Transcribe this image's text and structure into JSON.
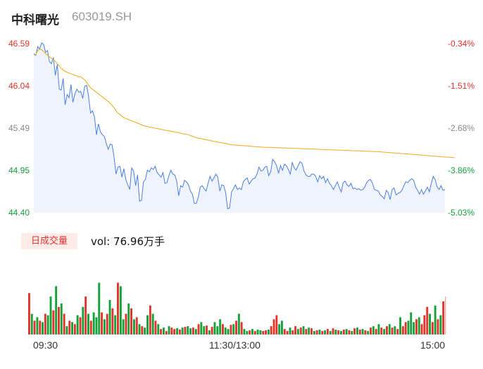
{
  "header": {
    "name": "中科曙光",
    "code": "603019.SH"
  },
  "period_label": "日成交量",
  "volume_text": "vol: 76.96万手",
  "colors": {
    "price_line": "#4a7fe0",
    "avg_line": "#f3a81c",
    "up": "#e0342c",
    "down": "#15a03a",
    "neutral": "#808080",
    "area": "#eef3fc"
  },
  "chart_data": [
    {
      "type": "line",
      "y_axis_left": [
        "46.59",
        "46.04",
        "45.49",
        "44.95",
        "44.40"
      ],
      "y_axis_right": [
        "-0.34%",
        "-1.51%",
        "-2.68%",
        "-3.86%",
        "-5.03%"
      ],
      "ylim": [
        44.4,
        46.59
      ],
      "x_ticks": [
        "09:30",
        "11:30/13:00",
        "15:00"
      ],
      "series": [
        {
          "points": [
            46.46,
            46.44,
            46.55,
            46.52,
            46.6,
            46.58,
            46.48,
            46.5,
            46.36,
            46.33,
            46.41,
            46.18,
            46.32,
            46.0,
            45.99,
            46.14,
            45.8,
            45.93,
            45.89,
            46.06,
            45.83,
            45.94,
            46.0,
            45.96,
            45.97,
            45.88,
            46.04,
            46.05,
            45.9,
            45.69,
            45.72,
            45.64,
            45.41,
            45.55,
            45.45,
            45.41,
            45.39,
            45.3,
            45.22,
            45.29,
            45.28,
            45.12,
            44.9,
            44.99,
            45.0,
            44.86,
            44.97,
            44.83,
            44.76,
            44.7,
            44.98,
            44.94,
            44.75,
            44.89,
            44.55,
            44.56,
            44.8,
            44.83,
            44.95,
            44.93,
            44.98,
            44.96,
            45.0,
            44.92,
            44.89,
            44.86,
            44.92,
            44.78,
            44.79,
            44.88,
            44.95,
            44.9,
            44.89,
            44.81,
            44.62,
            44.75,
            44.73,
            44.82,
            44.8,
            44.76,
            44.68,
            44.64,
            44.52,
            44.52,
            44.6,
            44.73,
            44.75,
            44.71,
            44.68,
            44.78,
            44.87,
            44.81,
            44.85,
            44.9,
            44.86,
            44.68,
            44.76,
            44.75,
            44.66,
            44.45,
            44.46,
            44.67,
            44.71,
            44.76,
            44.7,
            44.72,
            44.7,
            44.8,
            44.83,
            44.85,
            44.77,
            44.81,
            44.84,
            44.85,
            44.9,
            44.99,
            44.94,
            44.95,
            44.99,
            45.0,
            44.88,
            44.93,
            45.09,
            45.06,
            45.01,
            44.91,
            45.01,
            44.95,
            45.03,
            45.01,
            44.96,
            44.9,
            45.05,
            44.98,
            44.95,
            45.01,
            45.06,
            45.04,
            44.94,
            44.89,
            44.87,
            44.87,
            44.9,
            44.9,
            44.87,
            44.8,
            44.88,
            44.84,
            44.87,
            44.79,
            44.84,
            44.78,
            44.75,
            44.7,
            44.75,
            44.8,
            44.73,
            44.67,
            44.79,
            44.81,
            44.76,
            44.74,
            44.78,
            44.71,
            44.72,
            44.7,
            44.71,
            44.69,
            44.7,
            44.73,
            44.79,
            44.82,
            44.83,
            44.78,
            44.7,
            44.69,
            44.68,
            44.63,
            44.61,
            44.58,
            44.69,
            44.66,
            44.57,
            44.7,
            44.72,
            44.63,
            44.65,
            44.66,
            44.69,
            44.75,
            44.8,
            44.79,
            44.82,
            44.84,
            44.82,
            44.73,
            44.69,
            44.64,
            44.7,
            44.64,
            44.68,
            44.73,
            44.67,
            44.78,
            44.87,
            44.83,
            44.73,
            44.7,
            44.75,
            44.69,
            44.7
          ]
        },
        {
          "points": [
            46.44,
            46.45,
            46.5,
            46.52,
            46.51,
            46.49,
            46.46,
            46.44,
            46.42,
            46.4,
            46.38,
            46.36,
            46.33,
            46.3,
            46.27,
            46.25,
            46.23,
            46.22,
            46.21,
            46.2,
            46.19,
            46.18,
            46.17,
            46.16,
            46.16,
            46.14,
            46.12,
            46.09,
            46.05,
            46.02,
            46.0,
            45.98,
            45.96,
            45.94,
            45.92,
            45.9,
            45.88,
            45.86,
            45.84,
            45.82,
            45.79,
            45.76,
            45.72,
            45.69,
            45.67,
            45.65,
            45.63,
            45.62,
            45.61,
            45.6,
            45.59,
            45.58,
            45.57,
            45.56,
            45.55,
            45.54,
            45.53,
            45.52,
            45.515,
            45.51,
            45.505,
            45.5,
            45.495,
            45.49,
            45.485,
            45.48,
            45.475,
            45.47,
            45.465,
            45.46,
            45.455,
            45.45,
            45.445,
            45.44,
            45.435,
            45.43,
            45.425,
            45.42,
            45.415,
            45.41,
            45.4,
            45.39,
            45.38,
            45.37,
            45.365,
            45.36,
            45.355,
            45.35,
            45.345,
            45.34,
            45.335,
            45.33,
            45.325,
            45.32,
            45.315,
            45.31,
            45.305,
            45.3,
            45.295,
            45.29,
            45.285,
            45.28,
            45.278,
            45.276,
            45.274,
            45.272,
            45.27,
            45.268,
            45.266,
            45.264,
            45.262,
            45.26,
            45.258,
            45.256,
            45.254,
            45.252,
            45.25,
            45.249,
            45.248,
            45.247,
            45.246,
            45.245,
            45.244,
            45.243,
            45.242,
            45.241,
            45.24,
            45.239,
            45.238,
            45.237,
            45.236,
            45.235,
            45.234,
            45.233,
            45.232,
            45.231,
            45.23,
            45.229,
            45.228,
            45.227,
            45.226,
            45.225,
            45.224,
            45.223,
            45.222,
            45.221,
            45.22,
            45.219,
            45.218,
            45.217,
            45.216,
            45.215,
            45.214,
            45.213,
            45.212,
            45.211,
            45.21,
            45.209,
            45.208,
            45.207,
            45.206,
            45.205,
            45.204,
            45.203,
            45.202,
            45.201,
            45.2,
            45.199,
            45.198,
            45.197,
            45.196,
            45.195,
            45.194,
            45.193,
            45.192,
            45.191,
            45.19,
            45.188,
            45.186,
            45.184,
            45.182,
            45.18,
            45.178,
            45.176,
            45.174,
            45.172,
            45.17,
            45.168,
            45.166,
            45.164,
            45.162,
            45.16,
            45.158,
            45.156,
            45.154,
            45.152,
            45.15,
            45.148,
            45.146,
            45.144,
            45.142,
            45.14,
            45.138,
            45.136,
            45.134,
            45.132,
            45.13,
            45.128,
            45.126,
            45.124,
            45.122,
            45.12,
            45.118,
            45.116,
            45.114,
            45.112
          ]
        }
      ]
    },
    {
      "type": "bar",
      "bars": [
        [
          0.6,
          "u"
        ],
        [
          0.3,
          "d"
        ],
        [
          0.2,
          "u"
        ],
        [
          0.25,
          "d"
        ],
        [
          0.2,
          "u"
        ],
        [
          0.18,
          "d"
        ],
        [
          0.3,
          "u"
        ],
        [
          0.28,
          "d"
        ],
        [
          0.55,
          "d"
        ],
        [
          0.35,
          "u"
        ],
        [
          0.7,
          "d"
        ],
        [
          0.4,
          "u"
        ],
        [
          0.45,
          "d"
        ],
        [
          0.3,
          "u"
        ],
        [
          0.12,
          "d"
        ],
        [
          0.2,
          "u"
        ],
        [
          0.18,
          "d"
        ],
        [
          0.15,
          "u"
        ],
        [
          0.28,
          "d"
        ],
        [
          0.25,
          "u"
        ],
        [
          0.4,
          "d"
        ],
        [
          0.55,
          "u"
        ],
        [
          0.3,
          "d"
        ],
        [
          0.2,
          "u"
        ],
        [
          0.32,
          "d"
        ],
        [
          0.25,
          "d"
        ],
        [
          0.75,
          "d"
        ],
        [
          0.32,
          "u"
        ],
        [
          0.22,
          "d"
        ],
        [
          0.3,
          "u"
        ],
        [
          0.5,
          "d"
        ],
        [
          0.38,
          "u"
        ],
        [
          0.28,
          "d"
        ],
        [
          0.75,
          "u"
        ],
        [
          0.7,
          "d"
        ],
        [
          0.22,
          "d"
        ],
        [
          0.3,
          "u"
        ],
        [
          0.45,
          "d"
        ],
        [
          0.38,
          "u"
        ],
        [
          0.22,
          "d"
        ],
        [
          0.25,
          "u"
        ],
        [
          0.15,
          "d"
        ],
        [
          0.12,
          "u"
        ],
        [
          0.1,
          "d"
        ],
        [
          0.28,
          "d"
        ],
        [
          0.42,
          "u"
        ],
        [
          0.3,
          "d"
        ],
        [
          0.2,
          "u"
        ],
        [
          0.15,
          "d"
        ],
        [
          0.08,
          "u"
        ],
        [
          0.1,
          "d"
        ],
        [
          0.05,
          "u"
        ],
        [
          0.12,
          "d"
        ],
        [
          0.1,
          "u"
        ],
        [
          0.08,
          "u"
        ],
        [
          0.09,
          "d"
        ],
        [
          0.07,
          "u"
        ],
        [
          0.1,
          "d"
        ],
        [
          0.11,
          "u"
        ],
        [
          0.12,
          "d"
        ],
        [
          0.09,
          "d"
        ],
        [
          0.1,
          "u"
        ],
        [
          0.08,
          "d"
        ],
        [
          0.15,
          "u"
        ],
        [
          0.18,
          "d"
        ],
        [
          0.12,
          "d"
        ],
        [
          0.13,
          "u"
        ],
        [
          0.06,
          "d"
        ],
        [
          0.11,
          "u"
        ],
        [
          0.18,
          "d"
        ],
        [
          0.12,
          "d"
        ],
        [
          0.22,
          "d"
        ],
        [
          0.15,
          "u"
        ],
        [
          0.1,
          "d"
        ],
        [
          0.08,
          "d"
        ],
        [
          0.14,
          "u"
        ],
        [
          0.15,
          "d"
        ],
        [
          0.2,
          "u"
        ],
        [
          0.3,
          "d"
        ],
        [
          0.18,
          "u"
        ],
        [
          0.08,
          "d"
        ],
        [
          0.05,
          "d"
        ],
        [
          0.06,
          "u"
        ],
        [
          0.08,
          "d"
        ],
        [
          0.05,
          "u"
        ],
        [
          0.07,
          "d"
        ],
        [
          0.06,
          "d"
        ],
        [
          0.05,
          "u"
        ],
        [
          0.06,
          "u"
        ],
        [
          0.07,
          "d"
        ],
        [
          0.12,
          "u"
        ],
        [
          0.22,
          "u"
        ],
        [
          0.28,
          "u"
        ],
        [
          0.15,
          "d"
        ],
        [
          0.2,
          "d"
        ],
        [
          0.08,
          "u"
        ],
        [
          0.05,
          "u"
        ],
        [
          0.1,
          "d"
        ],
        [
          0.06,
          "u"
        ],
        [
          0.12,
          "u"
        ],
        [
          0.08,
          "d"
        ],
        [
          0.1,
          "u"
        ],
        [
          0.12,
          "d"
        ],
        [
          0.08,
          "u"
        ],
        [
          0.1,
          "d"
        ],
        [
          0.09,
          "u"
        ],
        [
          0.05,
          "d"
        ],
        [
          0.06,
          "u"
        ],
        [
          0.07,
          "d"
        ],
        [
          0.05,
          "u"
        ],
        [
          0.06,
          "d"
        ],
        [
          0.08,
          "u"
        ],
        [
          0.05,
          "d"
        ],
        [
          0.09,
          "u"
        ],
        [
          0.07,
          "d"
        ],
        [
          0.06,
          "u"
        ],
        [
          0.05,
          "d"
        ],
        [
          0.07,
          "u"
        ],
        [
          0.08,
          "d"
        ],
        [
          0.06,
          "u"
        ],
        [
          0.05,
          "d"
        ],
        [
          0.09,
          "u"
        ],
        [
          0.1,
          "d"
        ],
        [
          0.07,
          "u"
        ],
        [
          0.08,
          "d"
        ],
        [
          0.06,
          "u"
        ],
        [
          0.05,
          "d"
        ],
        [
          0.1,
          "u"
        ],
        [
          0.12,
          "d"
        ],
        [
          0.08,
          "u"
        ],
        [
          0.15,
          "d"
        ],
        [
          0.1,
          "u"
        ],
        [
          0.08,
          "d"
        ],
        [
          0.12,
          "u"
        ],
        [
          0.15,
          "d"
        ],
        [
          0.1,
          "u"
        ],
        [
          0.12,
          "d"
        ],
        [
          0.08,
          "u"
        ],
        [
          0.25,
          "d"
        ],
        [
          0.12,
          "u"
        ],
        [
          0.18,
          "u"
        ],
        [
          0.2,
          "d"
        ],
        [
          0.32,
          "d"
        ],
        [
          0.18,
          "d"
        ],
        [
          0.22,
          "u"
        ],
        [
          0.25,
          "d"
        ],
        [
          0.15,
          "u"
        ],
        [
          0.28,
          "u"
        ],
        [
          0.4,
          "u"
        ],
        [
          0.3,
          "d"
        ],
        [
          0.18,
          "u"
        ],
        [
          0.42,
          "d"
        ],
        [
          0.22,
          "u"
        ],
        [
          0.28,
          "d"
        ],
        [
          0.48,
          "u"
        ]
      ]
    }
  ]
}
